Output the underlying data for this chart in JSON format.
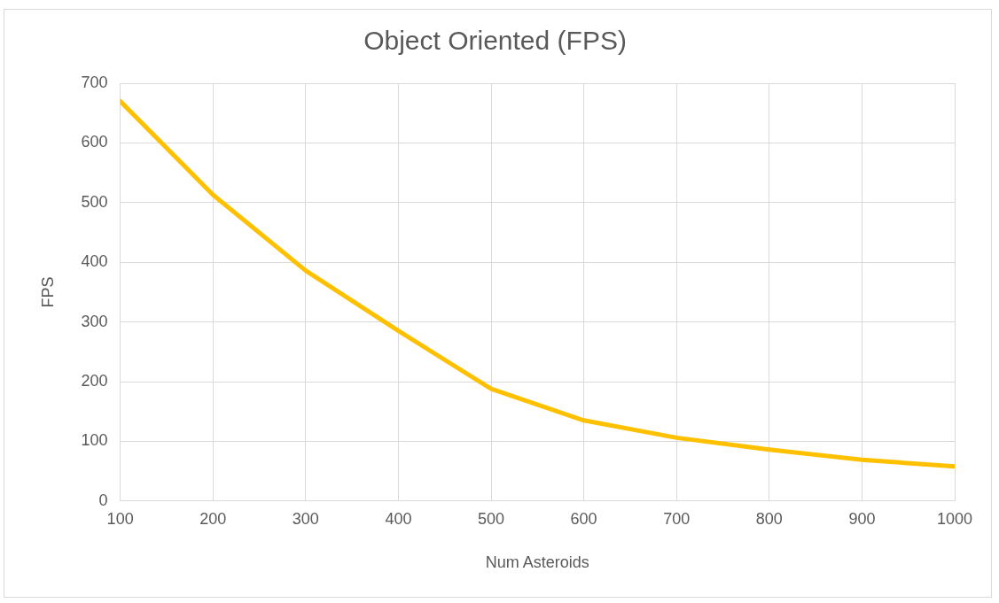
{
  "chart_data": {
    "type": "line",
    "title": "Object Oriented (FPS)",
    "xlabel": "Num Asteroids",
    "ylabel": "FPS",
    "x": [
      100,
      200,
      300,
      400,
      500,
      600,
      700,
      800,
      900,
      1000
    ],
    "series": [
      {
        "color": "#ffc000",
        "values": [
          670,
          513,
          386,
          285,
          188,
          135,
          106,
          86,
          69,
          58
        ]
      }
    ],
    "xlim": [
      100,
      1000
    ],
    "xticks": [
      100,
      200,
      300,
      400,
      500,
      600,
      700,
      800,
      900,
      1000
    ],
    "ylim": [
      0,
      700
    ],
    "yticks": [
      0,
      100,
      200,
      300,
      400,
      500,
      600,
      700
    ],
    "grid": true,
    "legend": false,
    "marker": "none",
    "line_style": "solid"
  }
}
